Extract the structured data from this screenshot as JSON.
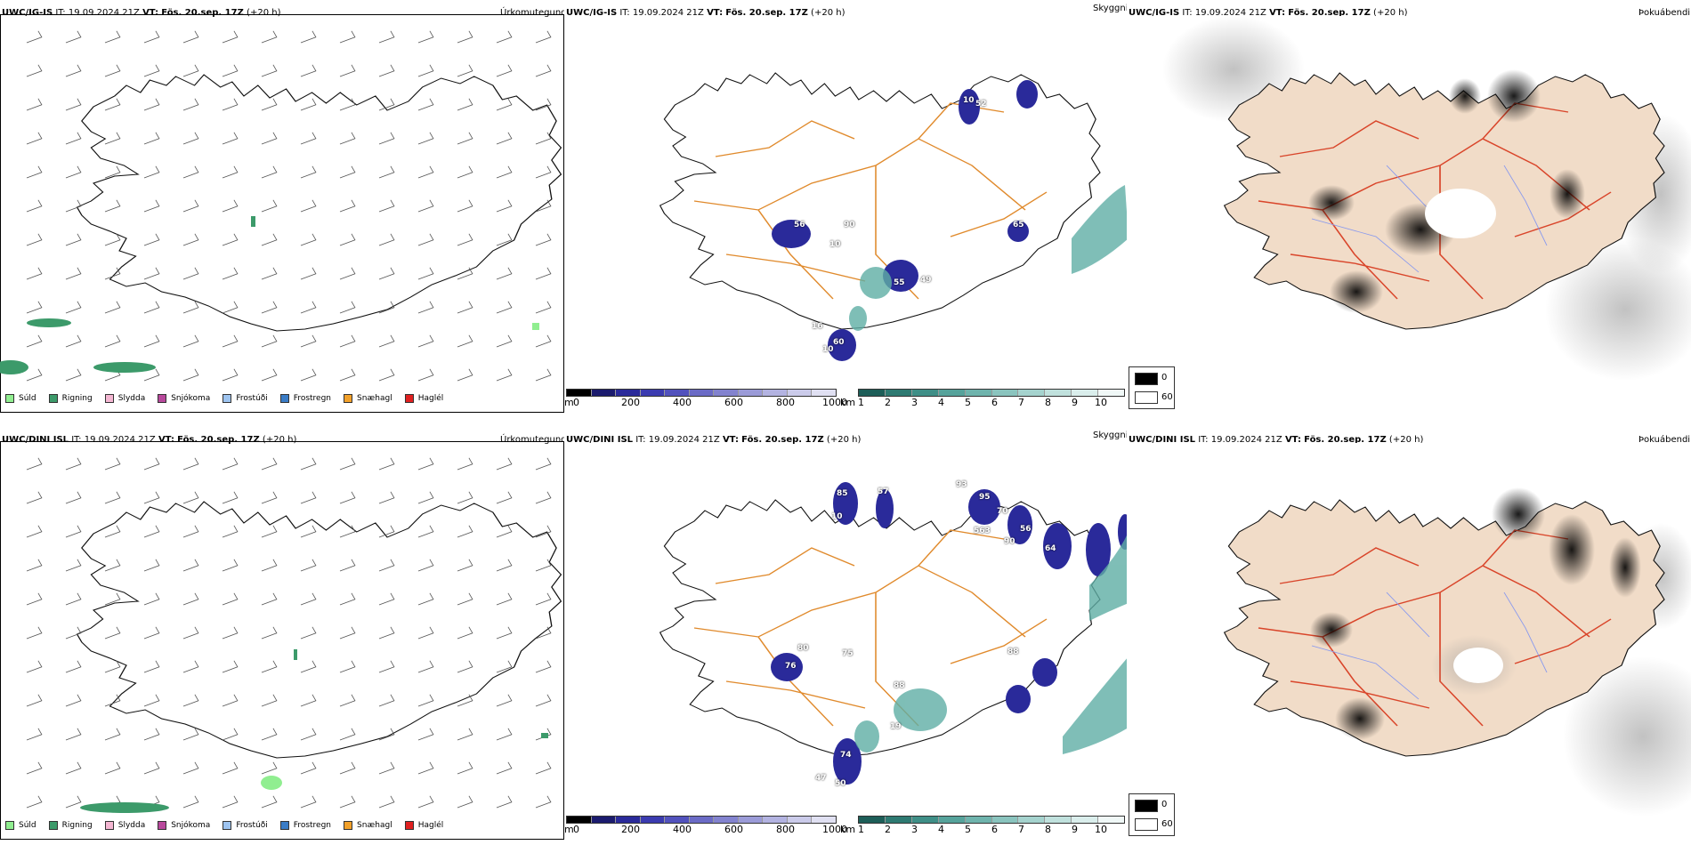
{
  "colors": {
    "coast": "#111111",
    "roads_orange": "#e08a2c",
    "roads_red": "#d9452a",
    "land_tan": "#f1dcc8",
    "rivers": "#8899ee",
    "low_cloud": "#2a2a9a",
    "high_cloud": "#5faea5",
    "wind_barb": "#444444"
  },
  "panels": {
    "row1": {
      "precip": {
        "model": "UWC/IG-IS",
        "it_label": "IT:",
        "it_value": "19.09.2024 21Z",
        "vt_label": "VT:",
        "vt_value": "Fös. 20.sep. 17Z",
        "lead": "(+20 h)",
        "field": "Úrkomutegund"
      },
      "cloud": {
        "model": "UWC/IG-IS",
        "it_label": "IT:",
        "it_value": "19.09.2024 21Z",
        "vt_label": "VT:",
        "vt_value": "Fös. 20.sep. 17Z",
        "lead": "(+20 h)",
        "field": "Skyggni",
        "labels": [
          "56",
          "90",
          "10",
          "65",
          "55",
          "52",
          "10",
          "60",
          "16",
          "49",
          "10"
        ]
      },
      "fog": {
        "model": "UWC/IG-IS",
        "it_label": "IT:",
        "it_value": "19.09.2024 21Z",
        "vt_label": "VT:",
        "vt_value": "Fös. 20.sep. 17Z",
        "lead": "(+20 h)",
        "field": "Þokuábendi"
      }
    },
    "row2": {
      "precip": {
        "model": "UWC/DINI ISL",
        "it_label": "IT:",
        "it_value": "19.09.2024 21Z",
        "vt_label": "VT:",
        "vt_value": "Fös. 20.sep. 17Z",
        "lead": "(+20 h)",
        "field": "Úrkomutegund"
      },
      "cloud": {
        "model": "UWC/DINI ISL",
        "it_label": "IT:",
        "it_value": "19.09.2024 21Z",
        "vt_label": "VT:",
        "vt_value": "Fös. 20.sep. 17Z",
        "lead": "(+20 h)",
        "field": "Skyggni",
        "labels": [
          "85",
          "57",
          "10",
          "93",
          "95",
          "70",
          "563",
          "90",
          "56",
          "64",
          "80",
          "75",
          "76",
          "88",
          "88",
          "19",
          "74",
          "50",
          "47"
        ]
      },
      "fog": {
        "model": "UWC/DINI ISL",
        "it_label": "IT:",
        "it_value": "19.09.2024 21Z",
        "vt_label": "VT:",
        "vt_value": "Fös. 20.sep. 17Z",
        "lead": "(+20 h)",
        "field": "Þokuábendi"
      }
    }
  },
  "precip_legend": [
    {
      "label": "Súld",
      "color": "#90ee90"
    },
    {
      "label": "Rigning",
      "color": "#3c9a6a"
    },
    {
      "label": "Slydda",
      "color": "#f4b6d2"
    },
    {
      "label": "Snjókoma",
      "color": "#b8489c"
    },
    {
      "label": "Frostúði",
      "color": "#9ec4f0"
    },
    {
      "label": "Frostregn",
      "color": "#3a7cc6"
    },
    {
      "label": "Snæhagl",
      "color": "#f2a12a"
    },
    {
      "label": "Haglél",
      "color": "#e02020"
    }
  ],
  "height_colorbar": {
    "unit": "m",
    "ticks": [
      "0",
      "200",
      "400",
      "600",
      "800",
      "1000"
    ],
    "colors": [
      "#000000",
      "#1b1b6e",
      "#2a2a9a",
      "#3b3bb0",
      "#5252bd",
      "#6b6bc6",
      "#8383cf",
      "#9b9bd8",
      "#b3b3e1",
      "#cbcbea",
      "#e0e0f2"
    ]
  },
  "visibility_colorbar": {
    "unit": "km",
    "ticks": [
      "1",
      "2",
      "3",
      "4",
      "5",
      "6",
      "7",
      "8",
      "9",
      "10"
    ],
    "colors": [
      "#1d5e58",
      "#2e7a72",
      "#3f8f87",
      "#56a39b",
      "#6fb4ad",
      "#8ac4be",
      "#a5d3ce",
      "#c0e1dd",
      "#daeeec",
      "#f0f8f7"
    ]
  },
  "fog_legend": {
    "entries": [
      {
        "label": "0",
        "color": "#000000"
      },
      {
        "label": "60",
        "color": "#ffffff"
      }
    ]
  }
}
